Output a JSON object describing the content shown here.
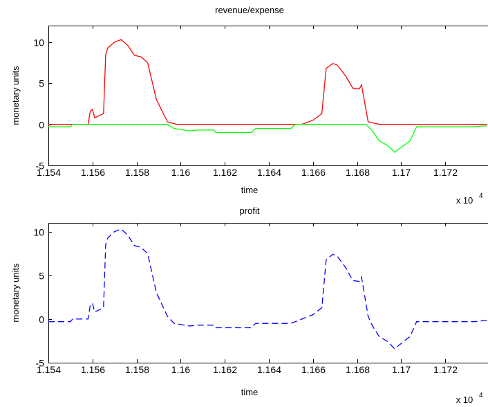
{
  "chart_data": [
    {
      "type": "line",
      "title": "revenue/expense",
      "xlabel": "time",
      "ylabel": "monetary units",
      "x_exponent_label": "x 10",
      "x_exponent_power": "4",
      "xlim": [
        1.154,
        1.174
      ],
      "ylim": [
        -5,
        12
      ],
      "x_ticks": [
        "1.154",
        "1.156",
        "1.158",
        "1.16",
        "1.162",
        "1.164",
        "1.166",
        "1.168",
        "1.17",
        "1.172"
      ],
      "x_tick_values": [
        1.154,
        1.156,
        1.158,
        1.16,
        1.162,
        1.164,
        1.166,
        1.168,
        1.17,
        1.172
      ],
      "y_ticks": [
        "-5",
        "0",
        "5",
        "10"
      ],
      "y_tick_values": [
        -5,
        0,
        5,
        10
      ],
      "grid": false,
      "series": [
        {
          "color": "#ff0000",
          "style": "solid",
          "x": [
            1.154,
            1.1558,
            1.1559,
            1.156,
            1.1561,
            1.1565,
            1.1566,
            1.1567,
            1.157,
            1.1573,
            1.1576,
            1.1579,
            1.1582,
            1.1585,
            1.1589,
            1.1594,
            1.1598,
            1.16,
            1.1605,
            1.1655,
            1.166,
            1.1664,
            1.1666,
            1.1667,
            1.1669,
            1.1671,
            1.1675,
            1.1678,
            1.1681,
            1.1682,
            1.1685,
            1.169,
            1.1739
          ],
          "y": [
            0,
            0,
            1.6,
            1.8,
            0.8,
            1.3,
            8.5,
            9.3,
            10.0,
            10.3,
            9.6,
            8.4,
            8.2,
            7.5,
            3.0,
            0.3,
            0,
            0,
            0,
            0,
            0.5,
            1.3,
            6.8,
            7.0,
            7.4,
            7.2,
            5.8,
            4.4,
            4.3,
            4.8,
            0.3,
            0,
            0
          ]
        },
        {
          "color": "#00ff00",
          "style": "solid",
          "x": [
            1.154,
            1.155,
            1.1551,
            1.1594,
            1.1597,
            1.1604,
            1.1608,
            1.1615,
            1.1616,
            1.1621,
            1.1632,
            1.1634,
            1.165,
            1.1652,
            1.1684,
            1.1687,
            1.169,
            1.1694,
            1.1697,
            1.17,
            1.1704,
            1.1707,
            1.1712,
            1.1733,
            1.1737,
            1.1739
          ],
          "y": [
            -0.3,
            -0.3,
            0,
            0,
            -0.5,
            -0.8,
            -0.7,
            -0.7,
            -1.0,
            -1.0,
            -1.0,
            -0.5,
            -0.5,
            0,
            0,
            -0.8,
            -2.0,
            -2.6,
            -3.4,
            -2.8,
            -2.0,
            -0.3,
            -0.3,
            -0.3,
            -0.2,
            -0.2
          ]
        }
      ]
    },
    {
      "type": "line",
      "title": "profit",
      "xlabel": "time",
      "ylabel": "monetary units",
      "x_exponent_label": "x 10",
      "x_exponent_power": "4",
      "xlim": [
        1.154,
        1.174
      ],
      "ylim": [
        -5,
        11
      ],
      "x_ticks": [
        "1.154",
        "1.156",
        "1.158",
        "1.16",
        "1.162",
        "1.164",
        "1.166",
        "1.168",
        "1.17",
        "1.172"
      ],
      "x_tick_values": [
        1.154,
        1.156,
        1.158,
        1.16,
        1.162,
        1.164,
        1.166,
        1.168,
        1.17,
        1.172
      ],
      "y_ticks": [
        "-5",
        "0",
        "5",
        "10"
      ],
      "y_tick_values": [
        -5,
        0,
        5,
        10
      ],
      "grid": false,
      "series": [
        {
          "color": "#0000ff",
          "style": "dashed",
          "x": [
            1.154,
            1.155,
            1.1551,
            1.1558,
            1.1559,
            1.156,
            1.1561,
            1.1565,
            1.1566,
            1.1567,
            1.157,
            1.1573,
            1.1576,
            1.1579,
            1.1582,
            1.1585,
            1.1589,
            1.1594,
            1.1597,
            1.1604,
            1.1608,
            1.1615,
            1.1616,
            1.1621,
            1.1632,
            1.1634,
            1.165,
            1.1655,
            1.166,
            1.1664,
            1.1666,
            1.1667,
            1.1669,
            1.1671,
            1.1675,
            1.1678,
            1.1681,
            1.1682,
            1.1685,
            1.1687,
            1.169,
            1.1694,
            1.1697,
            1.17,
            1.1704,
            1.1707,
            1.1712,
            1.1733,
            1.1737,
            1.1739
          ],
          "y": [
            -0.3,
            -0.3,
            0,
            0,
            1.6,
            1.8,
            0.8,
            1.3,
            8.5,
            9.3,
            10.0,
            10.3,
            9.6,
            8.4,
            8.2,
            7.5,
            3.0,
            0.3,
            -0.5,
            -0.8,
            -0.7,
            -0.7,
            -1.0,
            -1.0,
            -1.0,
            -0.5,
            -0.5,
            0,
            0.5,
            1.3,
            6.8,
            7.0,
            7.4,
            7.2,
            5.8,
            4.4,
            4.3,
            4.8,
            0.3,
            -0.8,
            -2.0,
            -2.6,
            -3.4,
            -2.8,
            -2.0,
            -0.3,
            -0.3,
            -0.3,
            -0.2,
            -0.2
          ]
        }
      ]
    }
  ]
}
